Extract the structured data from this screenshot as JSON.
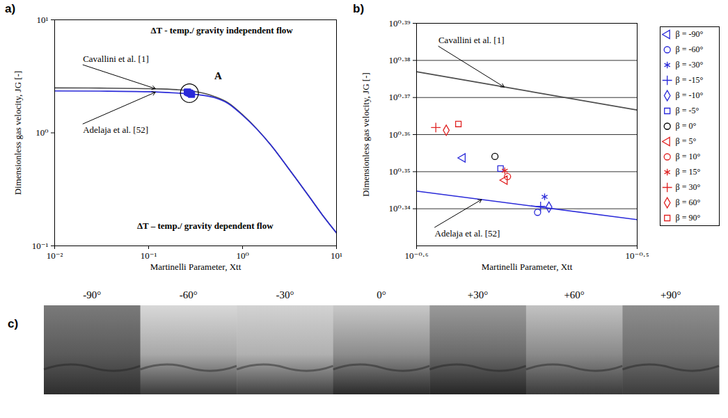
{
  "chart_data": [
    {
      "type": "line",
      "panel_label": "a)",
      "x_label": "Martinelli Parameter, Xtt",
      "y_label": "Dimensionless gas velocity, JG [-]",
      "log": true,
      "grid": false,
      "xlim": [
        0.01,
        10
      ],
      "ylim": [
        0.1,
        10
      ],
      "xticks": [
        {
          "value": 0.01,
          "label": "10⁻²"
        },
        {
          "value": 0.1,
          "label": "10⁻¹"
        },
        {
          "value": 1,
          "label": "10⁰"
        },
        {
          "value": 10,
          "label": "10¹"
        }
      ],
      "yticks": [
        {
          "value": 0.1,
          "label": "10⁻¹"
        },
        {
          "value": 1,
          "label": "10⁰"
        },
        {
          "value": 10,
          "label": "10¹"
        }
      ],
      "annotations": [
        {
          "text": "ΔT - temp./ gravity independent flow",
          "x": 0.6,
          "y": 8
        },
        {
          "text": "ΔT – temp./ gravity dependent flow",
          "x": 0.4,
          "y": 0.15
        }
      ],
      "series": [
        {
          "name": "Cavallini et al. [1]",
          "type": "line",
          "color": "#4d4d4d",
          "x": [
            0.01,
            0.03,
            0.1,
            0.2,
            0.3,
            0.5,
            0.7,
            1,
            2,
            3,
            5,
            7,
            10
          ],
          "values": [
            2.5,
            2.49,
            2.46,
            2.41,
            2.33,
            2.1,
            1.85,
            1.45,
            0.78,
            0.5,
            0.28,
            0.19,
            0.13
          ],
          "annotation": {
            "x": 0.02,
            "y": 4,
            "arrow_to": [
              0.12,
              2.45
            ]
          }
        },
        {
          "name": "Adelaja et al. [52]",
          "type": "line",
          "color": "#2b2bd9",
          "x": [
            0.01,
            0.03,
            0.1,
            0.2,
            0.3,
            0.5,
            0.7,
            1,
            2,
            3,
            5,
            7,
            10
          ],
          "values": [
            2.35,
            2.34,
            2.31,
            2.25,
            2.2,
            2.05,
            1.82,
            1.43,
            0.78,
            0.5,
            0.28,
            0.19,
            0.13
          ],
          "annotation": {
            "x": 0.02,
            "y": 1.2,
            "arrow_to": [
              0.12,
              2.3
            ]
          }
        },
        {
          "type": "scatter",
          "marker": "filled-square",
          "color": "#2b2bd9",
          "x": [
            0.2636,
            0.285,
            0.2871,
            0.2859,
            0.2884,
            0.2742,
            0.2726,
            0.2754,
            0.2762,
            0.2754,
            0.2563,
            0.2591,
            0.2624
          ],
          "values": [
            2.258,
            2.183,
            2.204,
            2.191,
            2.19,
            2.243,
            2.26,
            2.227,
            2.232,
            2.24,
            2.301,
            2.297,
            2.306
          ],
          "annotation": {
            "text": "A",
            "x": 0.55,
            "y": 3.2
          }
        }
      ]
    },
    {
      "type": "scatter",
      "panel_label": "b)",
      "x_label": "Martinelli Parameter, Xtt",
      "y_label": "Dimensionless gas velocity, JG [-]",
      "log": true,
      "grid": "y",
      "legend": "right",
      "xlim": [
        0.2512,
        0.3162
      ],
      "ylim": [
        2.138,
        2.4547
      ],
      "xticks": [
        {
          "value": 0.2512,
          "label": "10⁻⁰·⁶"
        },
        {
          "value": 0.3162,
          "label": "10⁻⁰·⁵"
        }
      ],
      "yticks": [
        {
          "value": 2.1878,
          "label": "10⁰·³⁴"
        },
        {
          "value": 2.2387,
          "label": "10⁰·³⁵"
        },
        {
          "value": 2.2909,
          "label": "10⁰·³⁶"
        },
        {
          "value": 2.3442,
          "label": "10⁰·³⁷"
        },
        {
          "value": 2.3988,
          "label": "10⁰·³⁸"
        },
        {
          "value": 2.4547,
          "label": "10⁰·³⁹"
        }
      ],
      "series": [
        {
          "name": "Cavallini et al. [1]",
          "type": "line",
          "color": "#4d4d4d",
          "x": [
            0.2512,
            0.3162
          ],
          "values": [
            2.382,
            2.326
          ],
          "annotation": {
            "x": 0.257,
            "y": 2.42,
            "arrow_to": [
              0.2754,
              2.359
            ]
          }
        },
        {
          "name": "Adelaja et al. [52]",
          "type": "line",
          "color": "#2b2bd9",
          "x": [
            0.2512,
            0.3162
          ],
          "values": [
            2.212,
            2.173
          ],
          "annotation": {
            "x": 0.256,
            "y": 2.1627,
            "arrow_to": [
              0.269,
              2.2008
            ]
          }
        },
        {
          "name": "β = -90°",
          "type": "scatter",
          "marker": "triangle-left",
          "color": "#2b2bd9",
          "x": [
            0.2636
          ],
          "values": [
            2.258
          ]
        },
        {
          "name": "β = -60°",
          "type": "scatter",
          "marker": "circle",
          "color": "#2b2bd9",
          "x": [
            0.285
          ],
          "values": [
            2.183
          ]
        },
        {
          "name": "β = -30°",
          "type": "scatter",
          "marker": "asterisk",
          "color": "#2b2bd9",
          "x": [
            0.2871
          ],
          "values": [
            2.204
          ]
        },
        {
          "name": "β = -15°",
          "type": "scatter",
          "marker": "plus",
          "color": "#2b2bd9",
          "x": [
            0.2859
          ],
          "values": [
            2.191
          ]
        },
        {
          "name": "β = -10°",
          "type": "scatter",
          "marker": "diamond",
          "color": "#2b2bd9",
          "x": [
            0.2884
          ],
          "values": [
            2.19
          ]
        },
        {
          "name": "β = -5°",
          "type": "scatter",
          "marker": "square",
          "color": "#2b2bd9",
          "x": [
            0.2742
          ],
          "values": [
            2.243
          ]
        },
        {
          "name": "β = 0°",
          "type": "scatter",
          "marker": "circle",
          "color": "#000000",
          "x": [
            0.2726
          ],
          "values": [
            2.26
          ]
        },
        {
          "name": "β = 5°",
          "type": "scatter",
          "marker": "triangle-left",
          "color": "#e02424",
          "x": [
            0.2754
          ],
          "values": [
            2.227
          ]
        },
        {
          "name": "β = 10°",
          "type": "scatter",
          "marker": "circle",
          "color": "#e02424",
          "x": [
            0.2762
          ],
          "values": [
            2.232
          ]
        },
        {
          "name": "β = 15°",
          "type": "scatter",
          "marker": "asterisk",
          "color": "#e02424",
          "x": [
            0.2754
          ],
          "values": [
            2.24
          ]
        },
        {
          "name": "β = 30°",
          "type": "scatter",
          "marker": "plus",
          "color": "#e02424",
          "x": [
            0.2563
          ],
          "values": [
            2.301
          ]
        },
        {
          "name": "β = 60°",
          "type": "scatter",
          "marker": "diamond",
          "color": "#e02424",
          "x": [
            0.2591
          ],
          "values": [
            2.297
          ]
        },
        {
          "name": "β = 90°",
          "type": "scatter",
          "marker": "square",
          "color": "#e02424",
          "x": [
            0.2624
          ],
          "values": [
            2.306
          ]
        }
      ]
    }
  ],
  "photo_strip": {
    "panel_label": "c)",
    "panels": [
      "-90°",
      "-60°",
      "-30°",
      "0°",
      "+30°",
      "+60°",
      "+90°"
    ]
  }
}
